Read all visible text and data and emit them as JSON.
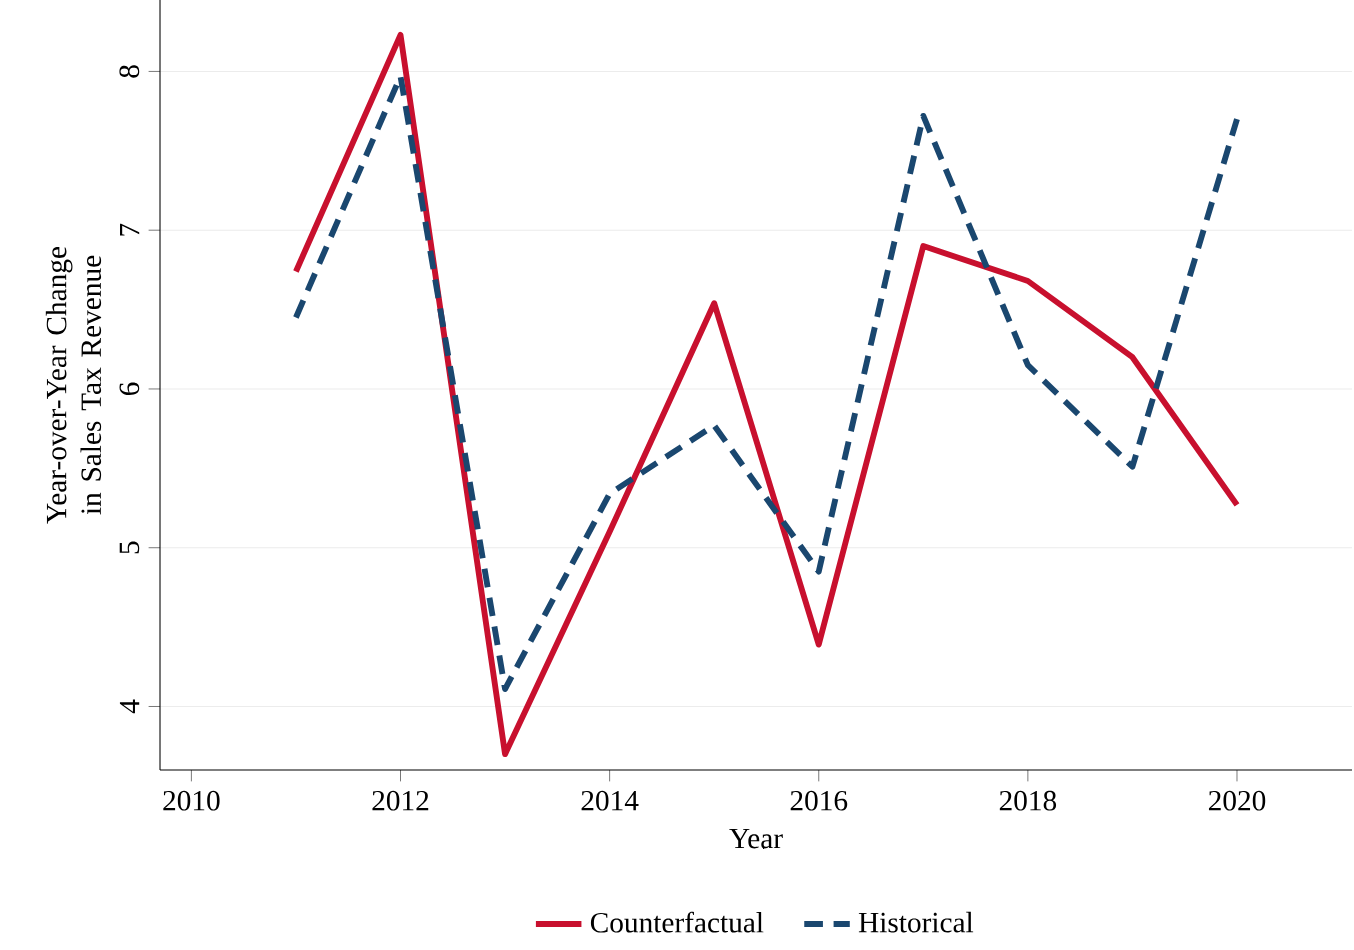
{
  "chart_data": {
    "type": "line",
    "xlabel": "Year",
    "ylabel": "Year-over-Year Change in Sales Tax Revenue",
    "x": [
      2011,
      2012,
      2013,
      2014,
      2015,
      2016,
      2017,
      2018,
      2019,
      2020
    ],
    "series": [
      {
        "name": "Counterfactual",
        "color": "#c8102e",
        "line_style": "solid",
        "values": [
          6.74,
          8.23,
          3.7,
          5.1,
          6.54,
          4.39,
          6.9,
          6.68,
          6.2,
          5.27
        ]
      },
      {
        "name": "Historical",
        "color": "#1a476f",
        "line_style": "dashed",
        "values": [
          6.45,
          7.97,
          4.11,
          5.34,
          5.77,
          4.85,
          7.72,
          6.15,
          5.51,
          7.7
        ]
      }
    ],
    "xlim": [
      2009.7,
      2021.1
    ],
    "ylim": [
      3.6,
      8.45
    ],
    "xticks": [
      2010,
      2012,
      2014,
      2016,
      2018,
      2020
    ],
    "yticks": [
      4,
      5,
      6,
      7,
      8
    ],
    "grid": "y",
    "legend": "bottom",
    "marker": "none"
  }
}
